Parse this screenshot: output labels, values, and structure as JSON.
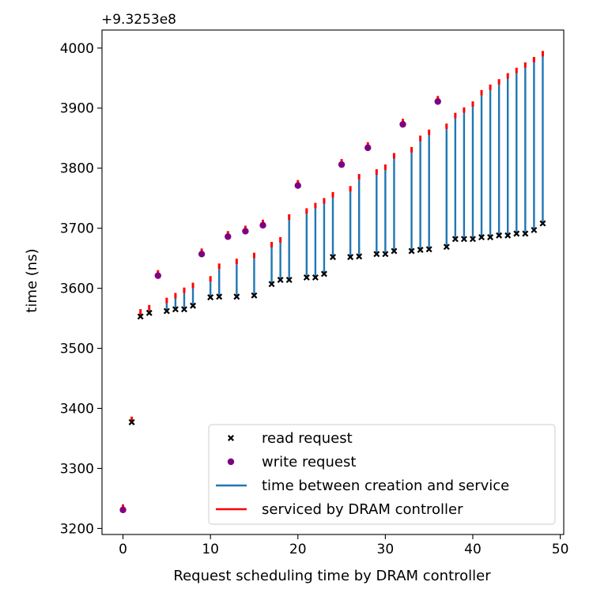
{
  "chart_data": {
    "type": "scatter",
    "title": "",
    "offset_label": "+9.3253e8",
    "xlabel": "Request scheduling time by DRAM controller",
    "ylabel": "time (ns)",
    "xlim": [
      -2.4,
      50.4
    ],
    "ylim": [
      3190,
      4030
    ],
    "xticks": [
      0,
      10,
      20,
      30,
      40,
      50
    ],
    "yticks": [
      3200,
      3300,
      3400,
      3500,
      3600,
      3700,
      3800,
      3900,
      4000
    ],
    "colors": {
      "read": "#000000",
      "write": "#800080",
      "creation_to_service": "#1f77b4",
      "serviced": "#ff0000"
    },
    "legend": {
      "placement": "lower right",
      "entries": [
        {
          "label": "read request",
          "marker": "x"
        },
        {
          "label": "write request",
          "marker": "dot"
        },
        {
          "label": "time between creation and service",
          "marker": "line-blue"
        },
        {
          "label": "serviced by DRAM controller",
          "marker": "line-red"
        }
      ]
    },
    "requests": [
      {
        "x": 0,
        "kind": "write",
        "created": 3231,
        "serviced": 3231
      },
      {
        "x": 1,
        "kind": "read",
        "created": 3377,
        "serviced": 3377
      },
      {
        "x": 2,
        "kind": "read",
        "created": 3553,
        "serviced": 3556
      },
      {
        "x": 3,
        "kind": "read",
        "created": 3559,
        "serviced": 3563
      },
      {
        "x": 4,
        "kind": "write",
        "created": 3621,
        "serviced": 3621
      },
      {
        "x": 5,
        "kind": "read",
        "created": 3562,
        "serviced": 3575
      },
      {
        "x": 6,
        "kind": "read",
        "created": 3565,
        "serviced": 3583
      },
      {
        "x": 7,
        "kind": "read",
        "created": 3565,
        "serviced": 3592
      },
      {
        "x": 8,
        "kind": "read",
        "created": 3571,
        "serviced": 3600
      },
      {
        "x": 9,
        "kind": "write",
        "created": 3657,
        "serviced": 3657
      },
      {
        "x": 10,
        "kind": "read",
        "created": 3585,
        "serviced": 3611
      },
      {
        "x": 11,
        "kind": "read",
        "created": 3586,
        "serviced": 3632
      },
      {
        "x": 12,
        "kind": "write",
        "created": 3686,
        "serviced": 3686
      },
      {
        "x": 13,
        "kind": "read",
        "created": 3586,
        "serviced": 3640
      },
      {
        "x": 14,
        "kind": "write",
        "created": 3695,
        "serviced": 3695
      },
      {
        "x": 15,
        "kind": "read",
        "created": 3588,
        "serviced": 3650
      },
      {
        "x": 16,
        "kind": "write",
        "created": 3705,
        "serviced": 3705
      },
      {
        "x": 17,
        "kind": "read",
        "created": 3607,
        "serviced": 3668
      },
      {
        "x": 18,
        "kind": "read",
        "created": 3614,
        "serviced": 3676
      },
      {
        "x": 19,
        "kind": "read",
        "created": 3614,
        "serviced": 3714
      },
      {
        "x": 20,
        "kind": "write",
        "created": 3771,
        "serviced": 3771
      },
      {
        "x": 21,
        "kind": "read",
        "created": 3618,
        "serviced": 3724
      },
      {
        "x": 22,
        "kind": "read",
        "created": 3618,
        "serviced": 3733
      },
      {
        "x": 23,
        "kind": "read",
        "created": 3624,
        "serviced": 3741
      },
      {
        "x": 24,
        "kind": "read",
        "created": 3652,
        "serviced": 3751
      },
      {
        "x": 25,
        "kind": "write",
        "created": 3806,
        "serviced": 3806
      },
      {
        "x": 26,
        "kind": "read",
        "created": 3652,
        "serviced": 3761
      },
      {
        "x": 27,
        "kind": "read",
        "created": 3653,
        "serviced": 3781
      },
      {
        "x": 28,
        "kind": "write",
        "created": 3834,
        "serviced": 3834
      },
      {
        "x": 29,
        "kind": "read",
        "created": 3657,
        "serviced": 3789
      },
      {
        "x": 30,
        "kind": "read",
        "created": 3657,
        "serviced": 3797
      },
      {
        "x": 31,
        "kind": "read",
        "created": 3662,
        "serviced": 3816
      },
      {
        "x": 32,
        "kind": "write",
        "created": 3873,
        "serviced": 3873
      },
      {
        "x": 33,
        "kind": "read",
        "created": 3662,
        "serviced": 3826
      },
      {
        "x": 34,
        "kind": "read",
        "created": 3664,
        "serviced": 3845
      },
      {
        "x": 35,
        "kind": "read",
        "created": 3665,
        "serviced": 3855
      },
      {
        "x": 36,
        "kind": "write",
        "created": 3911,
        "serviced": 3911
      },
      {
        "x": 37,
        "kind": "read",
        "created": 3669,
        "serviced": 3865
      },
      {
        "x": 38,
        "kind": "read",
        "created": 3682,
        "serviced": 3883
      },
      {
        "x": 39,
        "kind": "read",
        "created": 3682,
        "serviced": 3892
      },
      {
        "x": 40,
        "kind": "read",
        "created": 3682,
        "serviced": 3902
      },
      {
        "x": 41,
        "kind": "read",
        "created": 3685,
        "serviced": 3921
      },
      {
        "x": 42,
        "kind": "read",
        "created": 3685,
        "serviced": 3930
      },
      {
        "x": 43,
        "kind": "read",
        "created": 3688,
        "serviced": 3939
      },
      {
        "x": 44,
        "kind": "read",
        "created": 3688,
        "serviced": 3949
      },
      {
        "x": 45,
        "kind": "read",
        "created": 3691,
        "serviced": 3958
      },
      {
        "x": 46,
        "kind": "read",
        "created": 3691,
        "serviced": 3967
      },
      {
        "x": 47,
        "kind": "read",
        "created": 3697,
        "serviced": 3976
      },
      {
        "x": 48,
        "kind": "read",
        "created": 3708,
        "serviced": 3986
      }
    ]
  }
}
